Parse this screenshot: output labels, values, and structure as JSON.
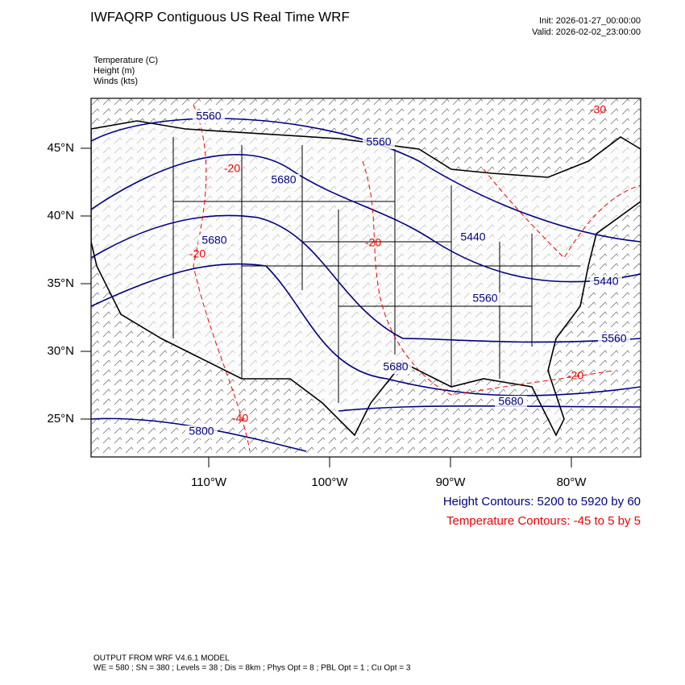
{
  "header": {
    "title": "IWFAQRP Contiguous US Real Time WRF",
    "init": "Init: 2026-01-27_00:00:00",
    "valid": "Valid: 2026-02-02_23:00:00"
  },
  "fields": [
    "Temperature   (C)",
    "Height   (m)",
    "Winds   (kts)"
  ],
  "map": {
    "lat_ticks": [
      {
        "value": 45,
        "label": "45°N"
      },
      {
        "value": 40,
        "label": "40°N"
      },
      {
        "value": 35,
        "label": "35°N"
      },
      {
        "value": 30,
        "label": "30°N"
      },
      {
        "value": 25,
        "label": "25°N"
      }
    ],
    "lon_ticks": [
      {
        "value": -110,
        "label": "110°W"
      },
      {
        "value": -100,
        "label": "100°W"
      },
      {
        "value": -90,
        "label": "90°W"
      },
      {
        "value": -80,
        "label": "80°W"
      }
    ],
    "height_labels": [
      "5560",
      "5560",
      "5680",
      "5680",
      "5440",
      "5440",
      "5560",
      "5560",
      "5680",
      "5680",
      "5800"
    ],
    "temperature_labels": [
      "-20",
      "-20",
      "-20",
      "-20",
      "-30",
      "-40"
    ]
  },
  "contour_info": {
    "height": "Height Contours: 5200 to 5920 by 60",
    "temperature": "Temperature Contours: -45 to 5 by 5"
  },
  "footer": {
    "model": "OUTPUT FROM WRF V4.6.1 MODEL",
    "settings": "WE = 580 ; SN = 380 ; Levels = 38 ; Dis = 8km ; Phys Opt = 8 ; PBL Opt = 1 ; Cu Opt = 3"
  }
}
